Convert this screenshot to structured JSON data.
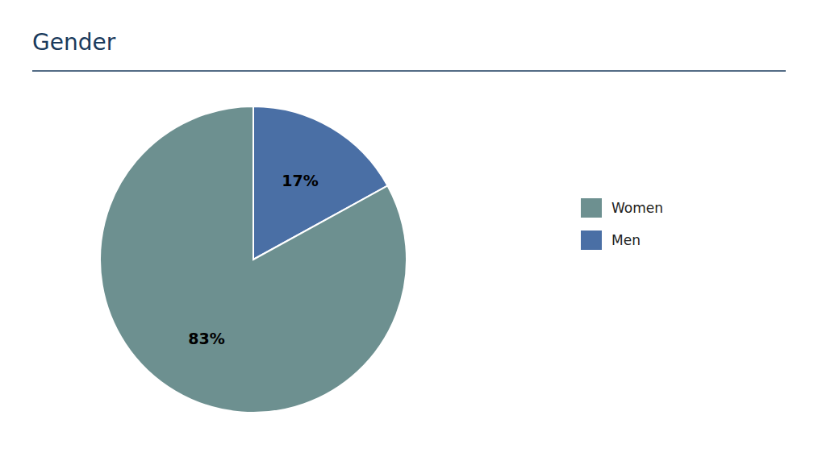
{
  "chart_data": {
    "type": "pie",
    "title": "Gender",
    "categories": [
      "Men",
      "Women"
    ],
    "values": [
      17,
      83
    ],
    "value_labels": [
      "17%",
      "83%"
    ],
    "colors": [
      "#4a6fa5",
      "#6d9090"
    ],
    "data_labels": true,
    "legend": "right"
  }
}
